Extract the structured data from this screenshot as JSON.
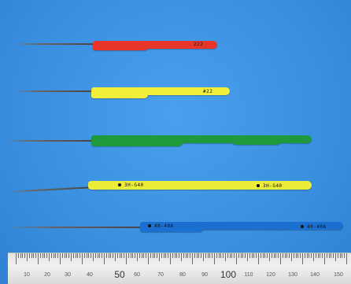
{
  "image": {
    "subject": "Five fine-wire electrodes with colored insulation tags",
    "background_color": "#3b8fe0"
  },
  "electrodes": [
    {
      "color": "#e8352a",
      "tag_text": "222"
    },
    {
      "color": "#f2ef3a",
      "tag_text": "#22"
    },
    {
      "color": "#1e9a3c",
      "tag_text": ""
    },
    {
      "color": "#ecec3a",
      "tag_text": "3H-G40",
      "tag_text_2": "3H-G40"
    },
    {
      "color": "#1a6fd0",
      "tag_text": "40-40A",
      "tag_text_2": "40-40A"
    }
  ],
  "ruler": {
    "labels": [
      "10",
      "20",
      "30",
      "40",
      "50",
      "60",
      "70",
      "80",
      "90",
      "100",
      "110",
      "120",
      "130",
      "140",
      "150"
    ],
    "major_labels": [
      "50",
      "100"
    ]
  }
}
